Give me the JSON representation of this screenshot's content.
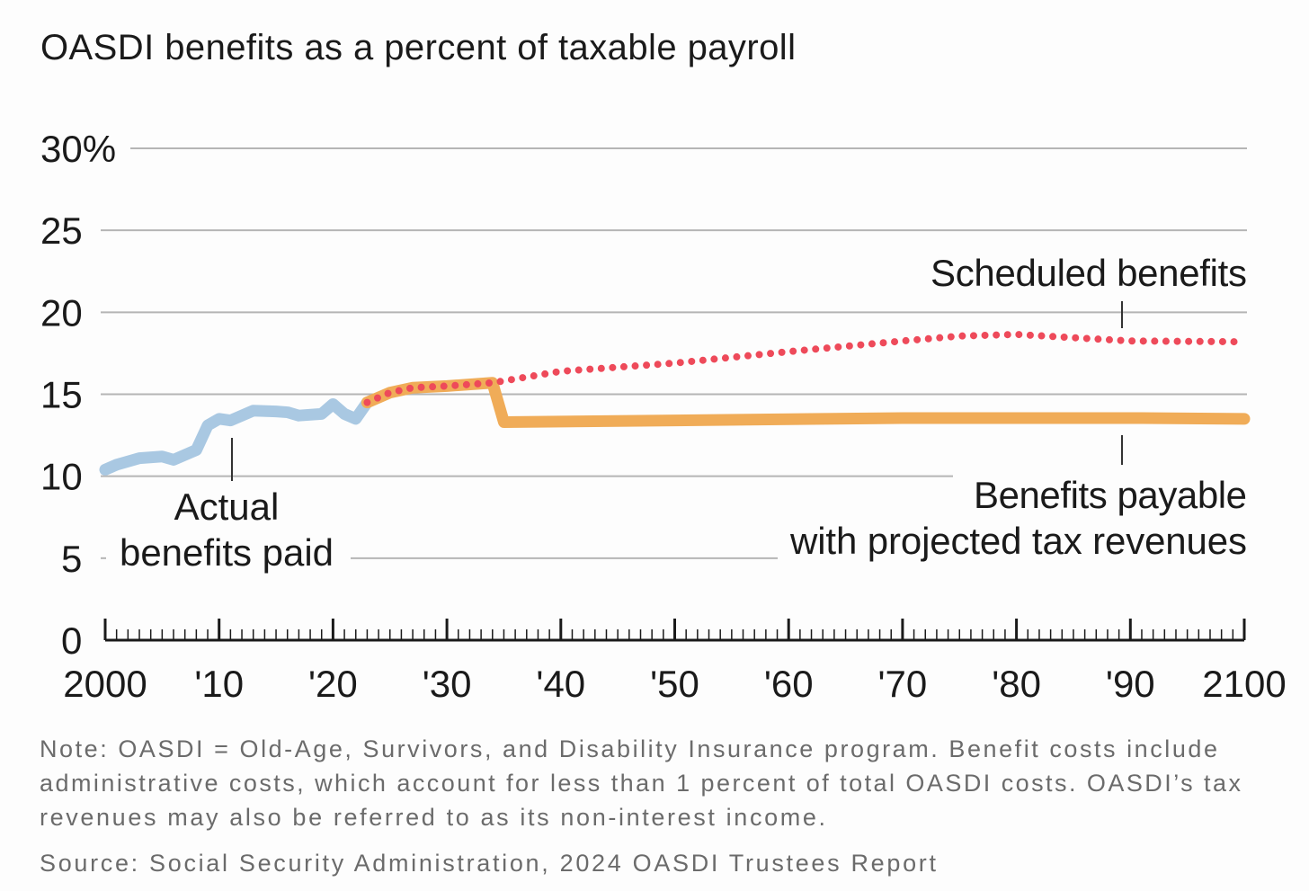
{
  "chart_data": {
    "type": "line",
    "title": "OASDI benefits as a percent of taxable payroll",
    "xlabel": "",
    "ylabel": "",
    "xlim": [
      2000,
      2100
    ],
    "ylim": [
      0,
      30
    ],
    "grid": true,
    "y_ticks": [
      {
        "value": 0,
        "label": "0"
      },
      {
        "value": 5,
        "label": "5"
      },
      {
        "value": 10,
        "label": "10"
      },
      {
        "value": 15,
        "label": "15"
      },
      {
        "value": 20,
        "label": "20"
      },
      {
        "value": 25,
        "label": "25"
      },
      {
        "value": 30,
        "label": "30%"
      }
    ],
    "x_ticks": [
      {
        "value": 2000,
        "label": "2000"
      },
      {
        "value": 2010,
        "label": "'10"
      },
      {
        "value": 2020,
        "label": "'20"
      },
      {
        "value": 2030,
        "label": "'30"
      },
      {
        "value": 2040,
        "label": "'40"
      },
      {
        "value": 2050,
        "label": "'50"
      },
      {
        "value": 2060,
        "label": "'60"
      },
      {
        "value": 2070,
        "label": "'70"
      },
      {
        "value": 2080,
        "label": "'80"
      },
      {
        "value": 2090,
        "label": "'90"
      },
      {
        "value": 2100,
        "label": "2100"
      }
    ],
    "series": [
      {
        "name": "Actual benefits paid",
        "color": "#a9c8e2",
        "style": "solid",
        "x": [
          2000,
          2001,
          2003,
          2005,
          2006,
          2008,
          2009,
          2010,
          2011,
          2013,
          2015,
          2016,
          2017,
          2019,
          2020,
          2021,
          2022,
          2023
        ],
        "y": [
          10.4,
          10.7,
          11.1,
          11.2,
          11.0,
          11.6,
          13.1,
          13.5,
          13.4,
          14.0,
          13.95,
          13.9,
          13.7,
          13.8,
          14.4,
          13.8,
          13.5,
          14.5
        ]
      },
      {
        "name": "Benefits payable with projected tax revenues",
        "color": "#f0ac58",
        "style": "solid",
        "x": [
          2023,
          2025,
          2027,
          2030,
          2034,
          2035,
          2050,
          2070,
          2090,
          2100
        ],
        "y": [
          14.5,
          15.1,
          15.4,
          15.5,
          15.7,
          13.3,
          13.4,
          13.55,
          13.55,
          13.5
        ]
      },
      {
        "name": "Scheduled benefits",
        "color": "#ee4a5a",
        "style": "dotted",
        "x": [
          2023,
          2025,
          2027,
          2030,
          2034,
          2040,
          2050,
          2060,
          2070,
          2075,
          2080,
          2085,
          2090,
          2100
        ],
        "y": [
          14.5,
          15.1,
          15.4,
          15.5,
          15.7,
          16.4,
          16.9,
          17.6,
          18.25,
          18.55,
          18.65,
          18.45,
          18.25,
          18.2
        ]
      }
    ],
    "annotations": {
      "actual": [
        "Actual",
        "benefits paid"
      ],
      "scheduled": "Scheduled benefits",
      "payable": [
        "Benefits payable",
        "with projected tax revenues"
      ]
    }
  },
  "footer": {
    "note_lines": [
      "Note: OASDI = Old-Age, Survivors, and Disability Insurance program. Benefit costs include",
      "administrative costs, which account for less than 1 percent of total OASDI costs. OASDI’s tax",
      "revenues may also be referred to as its non-interest income."
    ],
    "source": "Source: Social Security Administration, 2024 OASDI Trustees Report"
  }
}
